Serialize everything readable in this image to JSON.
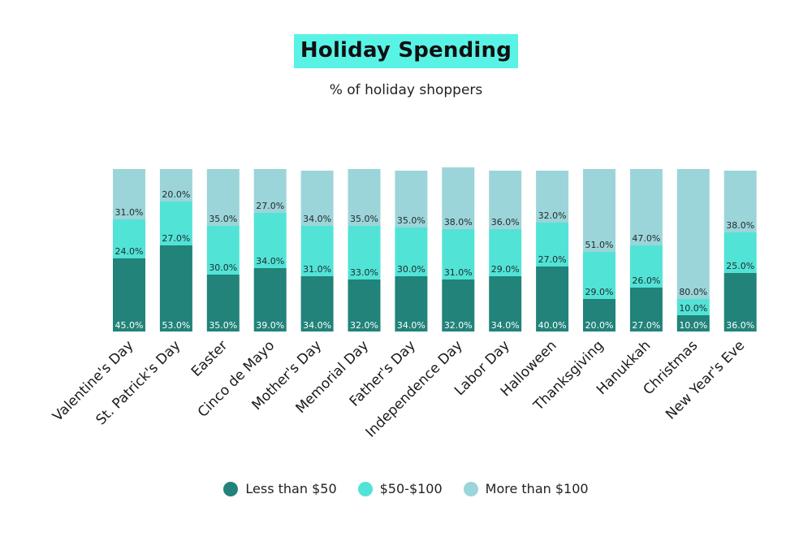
{
  "chart_data": {
    "type": "bar",
    "stacked": true,
    "title": "Holiday Spending",
    "subtitle": "% of holiday shoppers",
    "categories": [
      "Valentine's Day",
      "St. Patrick's Day",
      "Easter",
      "Cinco de Mayo",
      "Mother's Day",
      "Memorial Day",
      "Father's Day",
      "Independence Day",
      "Labor Day",
      "Halloween",
      "Thanksgiving",
      "Hanukkah",
      "Christmas",
      "New Year's Eve"
    ],
    "series": [
      {
        "name": "Less than $50",
        "color": "#21837a",
        "values": [
          45,
          53,
          35,
          39,
          34,
          32,
          34,
          32,
          34,
          40,
          20,
          27,
          10,
          36
        ]
      },
      {
        "name": "$50-$100",
        "color": "#52e3d7",
        "values": [
          24,
          27,
          30,
          34,
          31,
          33,
          30,
          31,
          29,
          27,
          29,
          26,
          10,
          25
        ]
      },
      {
        "name": "More than $100",
        "color": "#9cd5d9",
        "values": [
          31,
          20,
          35,
          27,
          34,
          35,
          35,
          38,
          36,
          32,
          51,
          47,
          80,
          38
        ]
      }
    ],
    "value_suffix": "%",
    "legend_position": "bottom",
    "grid": false
  },
  "colors": {
    "title_highlight": "#59f3e6"
  }
}
